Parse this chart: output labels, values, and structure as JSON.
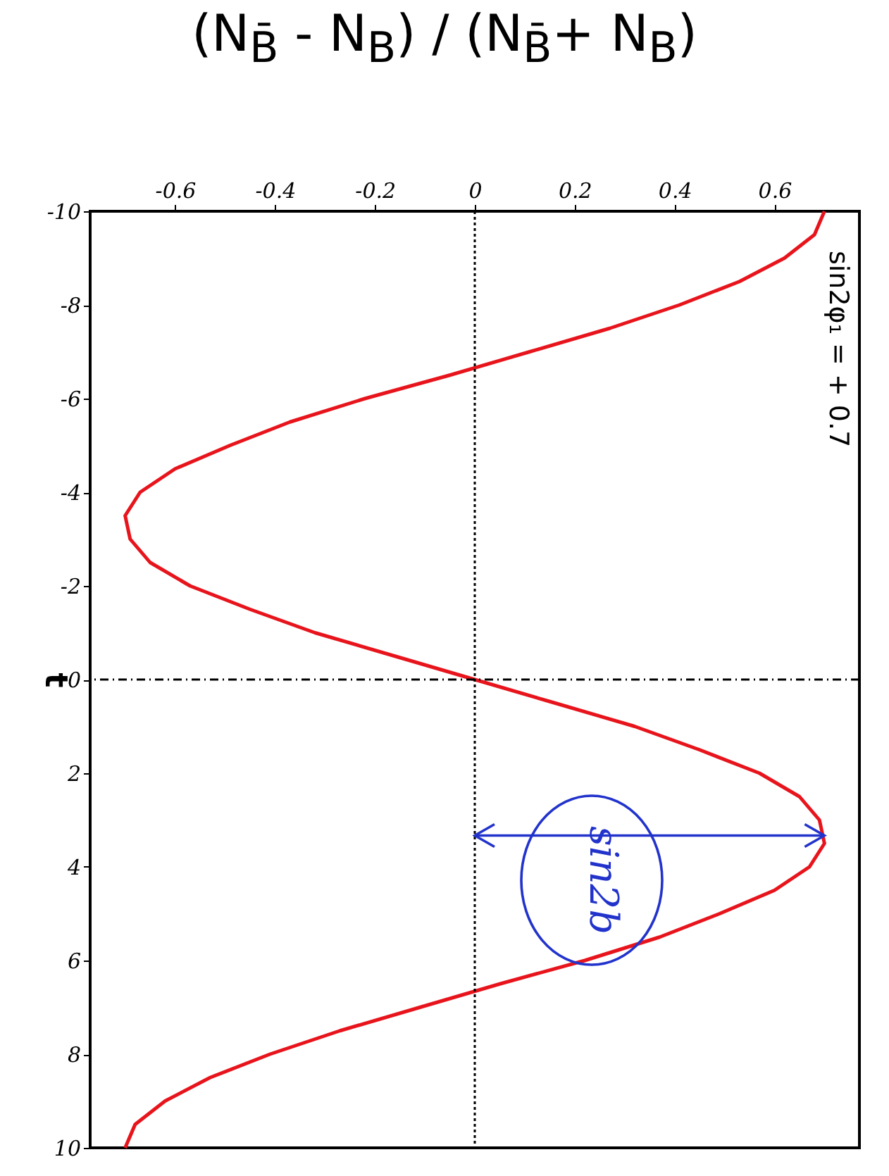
{
  "chart_data": {
    "type": "line",
    "orientation": "horizontal",
    "xlabel": "(N$_{B̄}$ - N$_{B}$) / (N$_{B̄}$+ N$_{B}$)",
    "ylabel": "t",
    "x": [
      -10,
      -9.5,
      -9,
      -8.5,
      -8,
      -7.5,
      -7,
      -6.5,
      -6,
      -5.5,
      -5,
      -4.5,
      -4,
      -3.5,
      -3,
      -2.5,
      -2,
      -1.5,
      -1,
      -0.5,
      0,
      0.5,
      1,
      1.5,
      2,
      2.5,
      3,
      3.5,
      4,
      4.5,
      5,
      5.5,
      6,
      6.5,
      7,
      7.5,
      8,
      8.5,
      9,
      9.5,
      10
    ],
    "series": [
      {
        "color": "#e8141c",
        "values": [
          0.7,
          0.68,
          0.62,
          0.53,
          0.41,
          0.27,
          0.11,
          -0.05,
          -0.22,
          -0.37,
          -0.49,
          -0.6,
          -0.67,
          -0.7,
          -0.69,
          -0.65,
          -0.57,
          -0.45,
          -0.32,
          -0.16,
          0,
          0.16,
          0.32,
          0.45,
          0.57,
          0.65,
          0.69,
          0.7,
          0.67,
          0.6,
          0.49,
          0.37,
          0.22,
          0.05,
          -0.11,
          -0.27,
          -0.41,
          -0.53,
          -0.62,
          -0.68,
          -0.7
        ]
      },
      {
        "type": "line",
        "color": "#2233cc",
        "x": [
          3.33,
          3.33
        ],
        "values": [
          0,
          0.7
        ]
      }
    ],
    "xlim": [
      -0.77,
      0.77
    ],
    "xticks": [
      -0.6,
      -0.4,
      -0.2,
      0,
      0.2,
      0.4,
      0.6
    ],
    "ylim": [
      10,
      -10
    ],
    "yticks": [
      -10,
      -8,
      -6,
      -4,
      -2,
      0,
      2,
      4,
      6,
      8,
      10
    ],
    "grid": false,
    "marker": "none",
    "line_style": "solid",
    "ref_lines": [
      {
        "axis": "x",
        "value": 0,
        "color": "#000000",
        "line_style": "dotted"
      },
      {
        "axis": "y",
        "value": 0,
        "color": "#000000",
        "line_style": "dashed"
      }
    ],
    "annotations": [
      "sin2φ₁ = + 0.7",
      "sin2b"
    ]
  }
}
